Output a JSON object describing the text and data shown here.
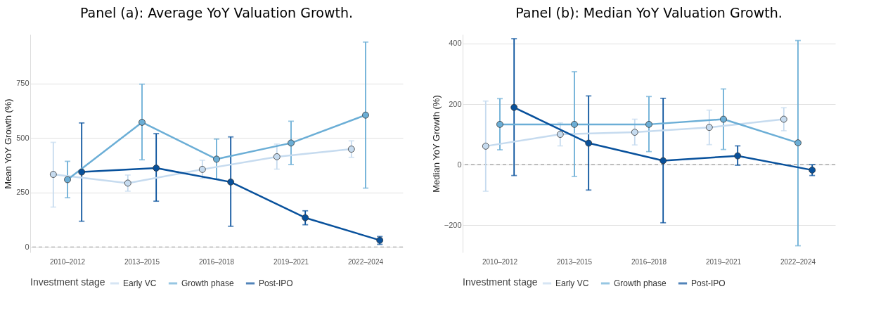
{
  "chart_data": [
    {
      "type": "line",
      "title": "Panel (a): Average YoY Valuation Growth.",
      "ylabel": "Mean YoY Growth (%)",
      "legend_title": "Investment stage",
      "legend": "bottom",
      "grid": "y",
      "marker": "circle",
      "categories": [
        "2010–2012",
        "2013–2015",
        "2016–2018",
        "2019–2021",
        "2022–2024"
      ],
      "ylim": [
        -25,
        975
      ],
      "yticks": [
        0,
        250,
        500,
        750
      ],
      "ref_lines": [
        {
          "axis": "y",
          "value": 0,
          "label": null,
          "color": "#999999",
          "line_style": "dashed"
        }
      ],
      "series": [
        {
          "name": "Early VC",
          "color": "#c6dbef",
          "values": [
            333,
            293,
            356,
            414,
            449
          ],
          "errors": [
            [
              183,
              480
            ],
            [
              256,
              330
            ],
            [
              314,
              398
            ],
            [
              357,
              472
            ],
            [
              411,
              487
            ]
          ]
        },
        {
          "name": "Growth phase",
          "color": "#6baed6",
          "values": [
            309,
            572,
            403,
            477,
            605
          ],
          "errors": [
            [
              226,
              393
            ],
            [
              400,
              747
            ],
            [
              312,
              495
            ],
            [
              378,
              577
            ],
            [
              270,
              940
            ]
          ]
        },
        {
          "name": "Post-IPO",
          "color": "#08519c",
          "values": [
            344,
            362,
            298,
            134,
            31
          ],
          "errors": [
            [
              118,
              569
            ],
            [
              210,
              520
            ],
            [
              95,
              505
            ],
            [
              102,
              166
            ],
            [
              12,
              48
            ]
          ]
        }
      ]
    },
    {
      "type": "line",
      "title": "Panel (b): Median YoY Valuation Growth.",
      "ylabel": "Median YoY Growth (%)",
      "legend_title": "Investment stage",
      "legend": "bottom",
      "grid": "y",
      "marker": "circle",
      "categories": [
        "2010–2012",
        "2013–2015",
        "2016–2018",
        "2019–2021",
        "2022–2024"
      ],
      "ylim": [
        -290,
        430
      ],
      "yticks": [
        -200,
        0,
        200,
        400
      ],
      "ref_lines": [
        {
          "axis": "y",
          "value": 0,
          "label": null,
          "color": "#999999",
          "line_style": "dashed"
        }
      ],
      "series": [
        {
          "name": "Early VC",
          "color": "#c6dbef",
          "values": [
            61,
            100,
            107,
            123,
            150
          ],
          "errors": [
            [
              -88,
              210
            ],
            [
              62,
              138
            ],
            [
              65,
              150
            ],
            [
              66,
              180
            ],
            [
              112,
              188
            ]
          ]
        },
        {
          "name": "Growth phase",
          "color": "#6baed6",
          "values": [
            133,
            133,
            133,
            150,
            72
          ],
          "errors": [
            [
              49,
              218
            ],
            [
              -39,
              307
            ],
            [
              43,
              225
            ],
            [
              50,
              250
            ],
            [
              -268,
              410
            ]
          ]
        },
        {
          "name": "Post-IPO",
          "color": "#08519c",
          "values": [
            189,
            71,
            13,
            29,
            -18
          ],
          "errors": [
            [
              -36,
              416
            ],
            [
              -84,
              227
            ],
            [
              -192,
              219
            ],
            [
              -2,
              62
            ],
            [
              -36,
              0
            ]
          ]
        }
      ]
    }
  ]
}
